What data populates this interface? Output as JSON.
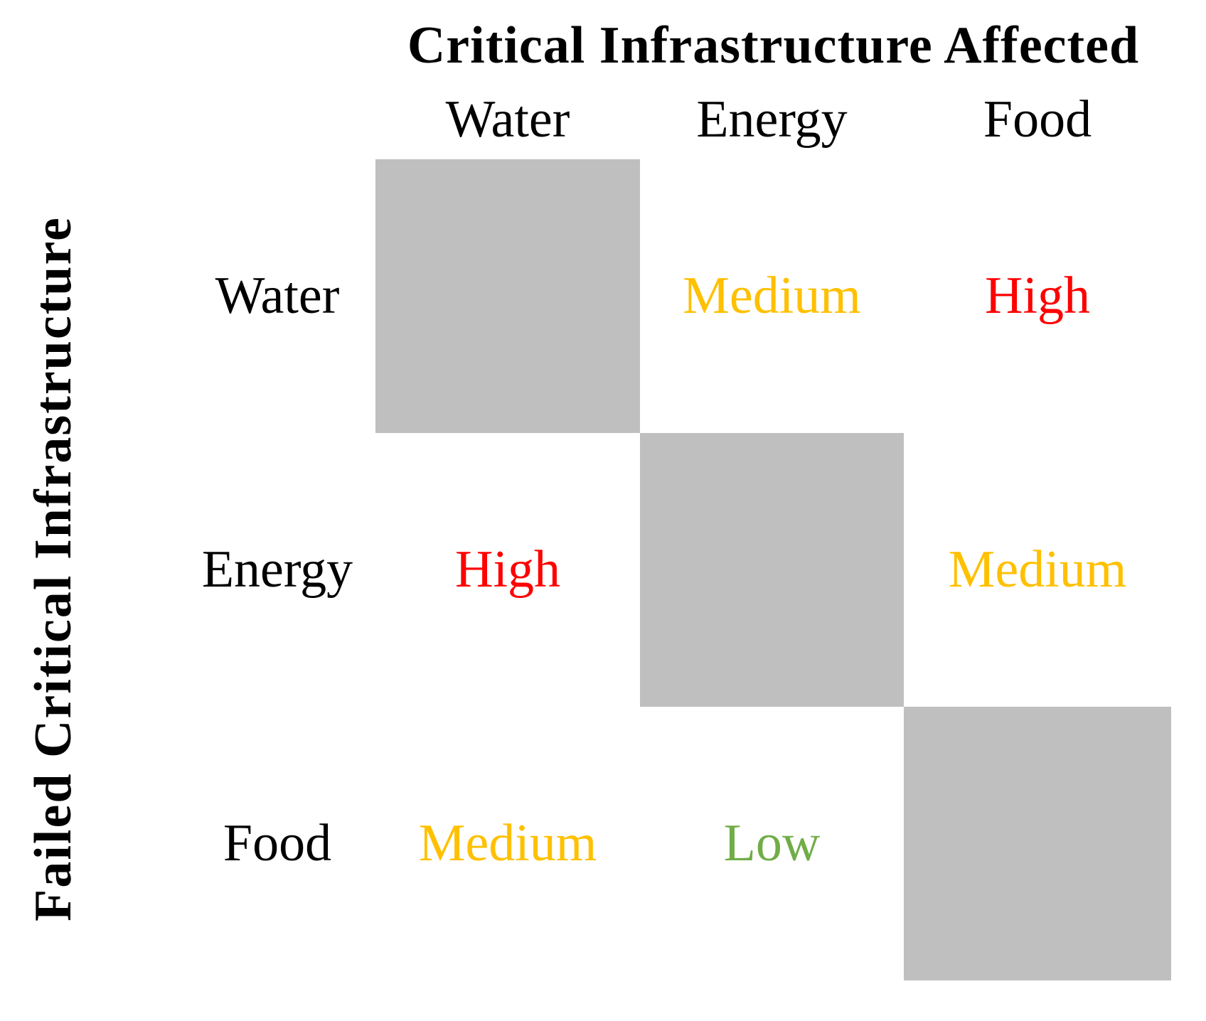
{
  "figure": {
    "column_axis_title": "Critical Infrastructure Affected",
    "row_axis_title": "Failed Critical Infrastructure",
    "columns": [
      "Water",
      "Energy",
      "Food"
    ],
    "rows": [
      "Water",
      "Energy",
      "Food"
    ]
  },
  "matrix": {
    "cells": [
      [
        null,
        {
          "label": "Medium",
          "level": "medium"
        },
        {
          "label": "High",
          "level": "high"
        }
      ],
      [
        {
          "label": "High",
          "level": "high"
        },
        null,
        {
          "label": "Medium",
          "level": "medium"
        }
      ],
      [
        {
          "label": "Medium",
          "level": "medium"
        },
        {
          "label": "Low",
          "level": "low"
        },
        null
      ]
    ]
  },
  "colors": {
    "high": "#FF0000",
    "medium": "#FFC000",
    "low": "#70AD47",
    "diagonal_block": "#BFBFBF",
    "text": "#000000",
    "background": "#FFFFFF"
  },
  "chart_data": {
    "type": "table",
    "subtype": "interdependency_matrix",
    "title": "Critical Infrastructure Affected",
    "col_axis_label": "Critical Infrastructure Affected",
    "row_axis_label": "Failed Critical Infrastructure",
    "columns": [
      "Water",
      "Energy",
      "Food"
    ],
    "rows": [
      "Water",
      "Energy",
      "Food"
    ],
    "values": [
      [
        null,
        "Medium",
        "High"
      ],
      [
        "High",
        null,
        "Medium"
      ],
      [
        "Medium",
        "Low",
        null
      ]
    ],
    "diagonal_cells": "solid gray blocks (self-intersection, no value)",
    "value_color_map": {
      "High": "#FF0000",
      "Medium": "#FFC000",
      "Low": "#70AD47"
    },
    "legend_position": "none",
    "grid": false
  }
}
